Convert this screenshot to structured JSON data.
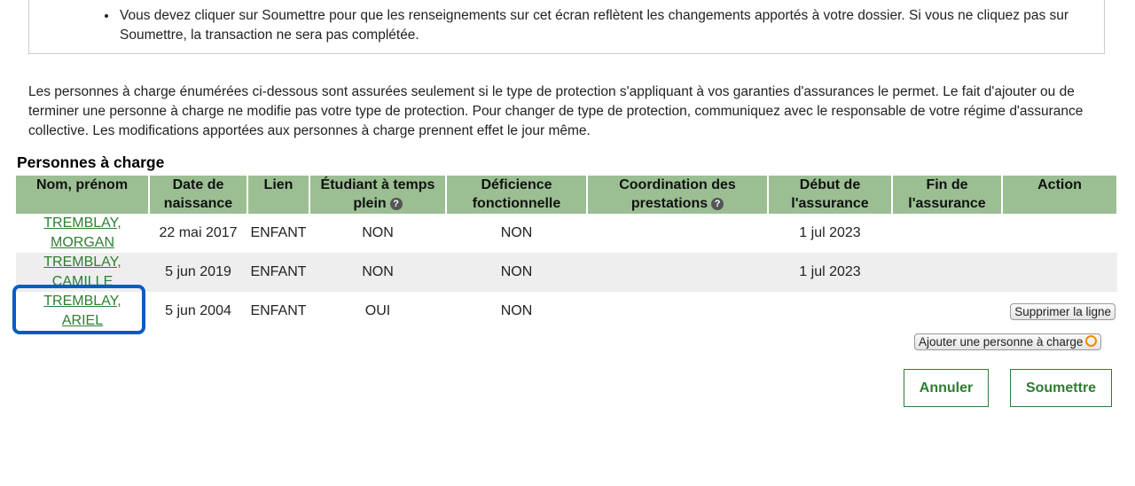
{
  "notice": {
    "text": "Vous devez cliquer sur Soumettre pour que les renseignements sur cet écran reflètent les changements apportés à votre dossier. Si vous ne cliquez pas sur Soumettre, la transaction ne sera pas complétée."
  },
  "intro": "Les personnes à charge énumérées ci-dessous sont assurées seulement si le type de protection s'appliquant à vos garanties d'assurances le permet. Le fait d'ajouter ou de terminer une personne à charge ne modifie pas votre type de protection. Pour changer de type de protection, communiquez avec le responsable de votre régime d'assurance collective. Les modifications apportées aux personnes à charge prennent effet le jour même.",
  "section_title": "Personnes à charge",
  "columns": [
    "Nom, prénom",
    "Date de naissance",
    "Lien",
    "Étudiant à temps plein",
    "Déficience fonctionnelle",
    "Coordination des prestations",
    "Début de l'assurance",
    "Fin de l'assurance",
    "Action"
  ],
  "rows": [
    {
      "name_last": "TREMBLAY,",
      "name_first": "MORGAN",
      "birth": "22 mai 2017",
      "link": "ENFANT",
      "student": "NON",
      "disability": "NON",
      "coordination": "",
      "start": "1 jul 2023",
      "end": "",
      "action": ""
    },
    {
      "name_last": "TREMBLAY,",
      "name_first": "CAMILLE",
      "birth": "5 jun 2019",
      "link": "ENFANT",
      "student": "NON",
      "disability": "NON",
      "coordination": "",
      "start": "1 jul 2023",
      "end": "",
      "action": ""
    },
    {
      "name_last": "TREMBLAY,",
      "name_first": "ARIEL",
      "birth": "5 jun 2004",
      "link": "ENFANT",
      "student": "OUI",
      "disability": "NON",
      "coordination": "",
      "start": "",
      "end": "",
      "action": "Supprimer la ligne"
    }
  ],
  "buttons": {
    "add": "Ajouter une personne à charge",
    "cancel": "Annuler",
    "submit": "Soumettre"
  },
  "colors": {
    "header": "#9bbf93",
    "link": "#2e7d32",
    "highlight": "#0a5cc2"
  }
}
